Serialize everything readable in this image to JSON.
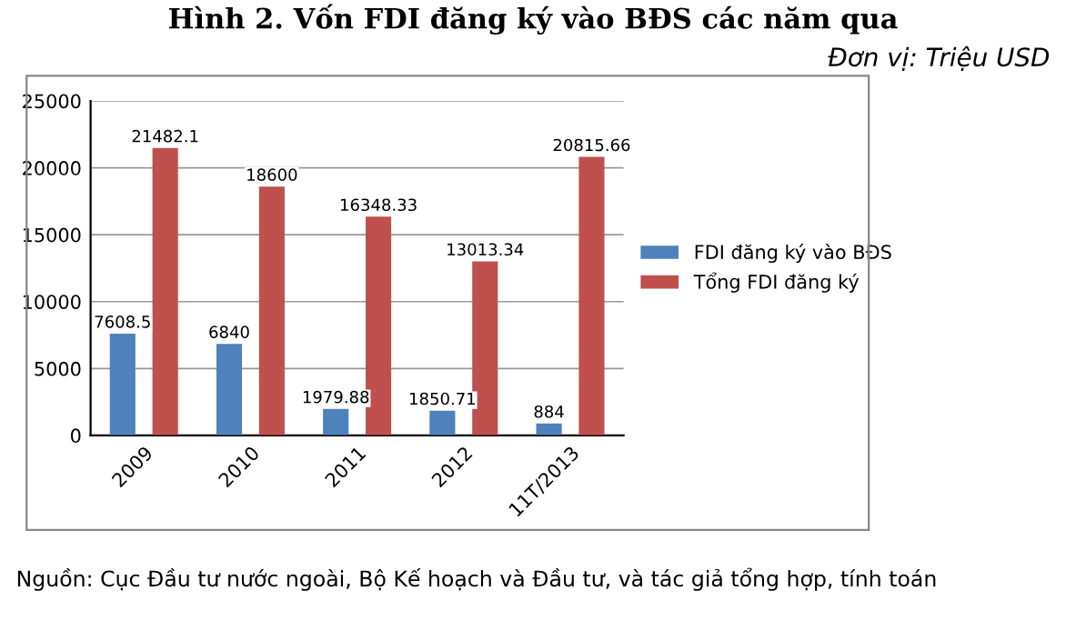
{
  "chart_data": {
    "type": "bar",
    "title": "Hình 2. Vốn FDI đăng ký vào BĐS các năm qua",
    "subtitle": "Đơn vị: Triệu USD",
    "categories": [
      "2009",
      "2010",
      "2011",
      "2012",
      "11T/2013"
    ],
    "series": [
      {
        "name": "FDI đăng ký vào BĐS",
        "color": "#4f81bd",
        "values": [
          7608.5,
          6840,
          1979.88,
          1850.71,
          884
        ]
      },
      {
        "name": "Tổng FDI đăng ký",
        "color": "#c0504d",
        "values": [
          21482.1,
          18600,
          16348.33,
          13013.34,
          20815.66
        ]
      }
    ],
    "ylim": [
      0,
      25000
    ],
    "yticks": [
      0,
      5000,
      10000,
      15000,
      20000,
      25000
    ],
    "grid": "y",
    "legend": "right",
    "data_labels": true,
    "annotations": [
      "Nguồn: Cục Đầu tư nước ngoài, Bộ Kế hoạch và Đầu tư, và tác giả tổng hợp, tính toán"
    ]
  }
}
